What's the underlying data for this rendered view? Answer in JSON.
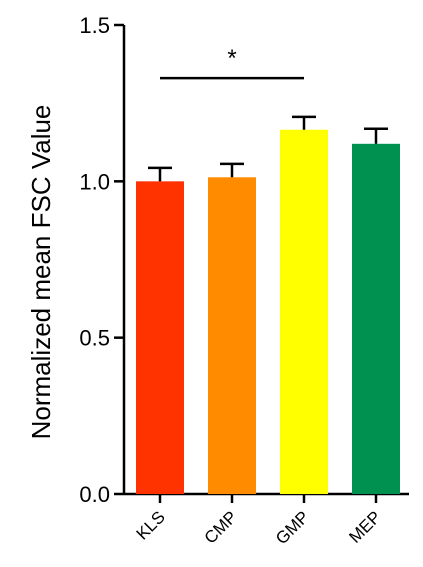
{
  "chart_data": {
    "type": "bar",
    "ylabel": "Normalized mean FSC Value",
    "xlabel": "",
    "ylim": [
      0.0,
      1.5
    ],
    "yticks": [
      0.0,
      0.5,
      1.0,
      1.5
    ],
    "ytick_labels": [
      "0.0",
      "0.5",
      "1.0",
      "1.5"
    ],
    "categories": [
      "KLS",
      "CMP",
      "GMP",
      "MEP"
    ],
    "values": [
      1.0,
      1.013,
      1.165,
      1.12
    ],
    "errors": [
      0.043,
      0.043,
      0.041,
      0.048
    ],
    "colors": [
      "#ff3300",
      "#ff8c00",
      "#ffff00",
      "#009150"
    ],
    "significance": {
      "from": "KLS",
      "to": "GMP",
      "y": 1.33,
      "label": "*"
    },
    "grid": false
  }
}
